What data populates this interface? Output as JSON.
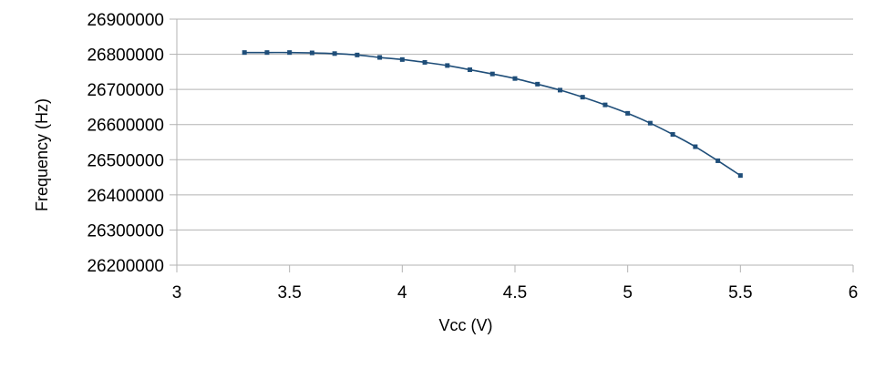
{
  "chart_data": {
    "type": "line",
    "title": "",
    "xlabel": "Vcc (V)",
    "ylabel": "Frequency (Hz)",
    "xlim": [
      3,
      6
    ],
    "ylim": [
      26200000,
      26900000
    ],
    "x_ticks": [
      "3",
      "3.5",
      "4",
      "4.5",
      "5",
      "5.5",
      "6"
    ],
    "y_ticks": [
      "26200000",
      "26300000",
      "26400000",
      "26500000",
      "26600000",
      "26700000",
      "26800000",
      "26900000"
    ],
    "x_tick_values": [
      3,
      3.5,
      4,
      4.5,
      5,
      5.5,
      6
    ],
    "y_tick_values": [
      26200000,
      26300000,
      26400000,
      26500000,
      26600000,
      26700000,
      26800000,
      26900000
    ],
    "grid": "horizontal",
    "legend": "none",
    "series": [
      {
        "color": "#1f4e79",
        "x": [
          3.3,
          3.4,
          3.5,
          3.6,
          3.7,
          3.8,
          3.9,
          4.0,
          4.1,
          4.2,
          4.3,
          4.4,
          4.5,
          4.6,
          4.7,
          4.8,
          4.9,
          5.0,
          5.1,
          5.2,
          5.3,
          5.4,
          5.5
        ],
        "y": [
          26805000,
          26805000,
          26805000,
          26804000,
          26802000,
          26798000,
          26791000,
          26785000,
          26777000,
          26768000,
          26756000,
          26744000,
          26731000,
          26715000,
          26698000,
          26678000,
          26656000,
          26632000,
          26604000,
          26572000,
          26537000,
          26497000,
          26455000
        ]
      }
    ]
  }
}
